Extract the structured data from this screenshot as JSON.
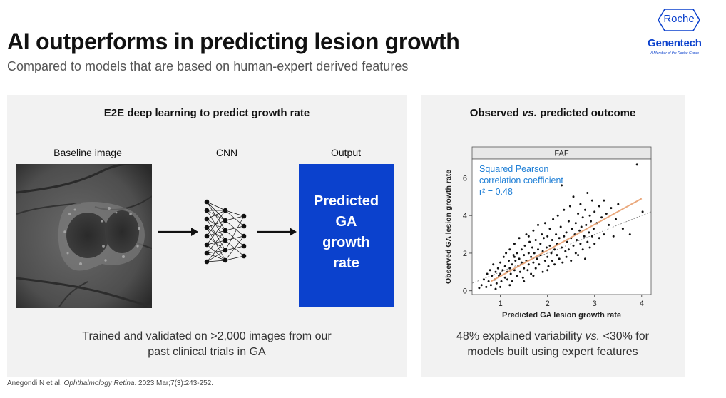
{
  "slide": {
    "title": "AI outperforms in predicting lesion growth",
    "subtitle": "Compared to models that are based on human-expert derived features"
  },
  "logo": {
    "brand": "Roche",
    "company": "Genentech",
    "tagline": "A Member of the Roche Group"
  },
  "left_panel": {
    "heading": "E2E deep learning to predict growth rate",
    "col_baseline": "Baseline image",
    "col_cnn": "CNN",
    "col_output": "Output",
    "output_lines": [
      "Predicted",
      "GA",
      "growth",
      "rate"
    ],
    "footnote_line1": "Trained and validated on >2,000 images from our",
    "footnote_line2": "past clinical trials in GA"
  },
  "right_panel": {
    "heading_pre": "Observed ",
    "heading_vs": "vs.",
    "heading_post": " predicted outcome",
    "footnote_line1_pre": "48% explained variability ",
    "footnote_line1_vs": "vs.",
    "footnote_line1_post": " <30% for",
    "footnote_line2": "models built using expert features"
  },
  "reference": {
    "authors": "Anegondi N et al. ",
    "journal": "Ophthalmology Retina",
    "details": ". 2023 Mar;7(3):243-252."
  },
  "colors": {
    "brand_blue": "#0b41cd",
    "panel_bg": "#f2f2f2",
    "fit_line": "#e8a070",
    "annotation": "#1f7fd6"
  },
  "chart_data": {
    "type": "scatter",
    "title": "FAF",
    "xlabel": "Predicted GA lesion growth rate",
    "ylabel": "Observed GA lesion growth rate",
    "xlim": [
      0.4,
      4.2
    ],
    "ylim": [
      -0.2,
      7.0
    ],
    "xticks": [
      1,
      2,
      3,
      4
    ],
    "yticks": [
      0,
      2,
      4,
      6
    ],
    "annotation_lines": [
      "Squared Pearson",
      "correlation coefficient",
      "r² = 0.48"
    ],
    "fit_line": {
      "x": [
        0.8,
        4.0
      ],
      "y": [
        0.5,
        4.9
      ]
    },
    "identity_line": {
      "x": [
        0.4,
        4.2
      ],
      "y": [
        0.4,
        4.2
      ]
    },
    "points": [
      [
        0.55,
        0.15
      ],
      [
        0.6,
        0.3
      ],
      [
        0.65,
        0.6
      ],
      [
        0.7,
        0.2
      ],
      [
        0.72,
        0.9
      ],
      [
        0.75,
        0.5
      ],
      [
        0.78,
        1.1
      ],
      [
        0.8,
        0.3
      ],
      [
        0.82,
        0.8
      ],
      [
        0.85,
        1.4
      ],
      [
        0.88,
        0.6
      ],
      [
        0.9,
        1.0
      ],
      [
        0.92,
        0.4
      ],
      [
        0.95,
        1.2
      ],
      [
        0.97,
        0.8
      ],
      [
        1.0,
        1.5
      ],
      [
        1.0,
        0.9
      ],
      [
        1.02,
        0.5
      ],
      [
        1.05,
        1.1
      ],
      [
        1.07,
        1.8
      ],
      [
        1.1,
        0.7
      ],
      [
        1.1,
        1.3
      ],
      [
        1.12,
        2.0
      ],
      [
        1.15,
        1.0
      ],
      [
        1.15,
        0.6
      ],
      [
        1.18,
        1.6
      ],
      [
        1.2,
        1.2
      ],
      [
        1.2,
        2.2
      ],
      [
        1.22,
        0.9
      ],
      [
        1.25,
        1.4
      ],
      [
        1.25,
        0.5
      ],
      [
        1.28,
        1.9
      ],
      [
        1.3,
        1.1
      ],
      [
        1.3,
        2.5
      ],
      [
        1.32,
        1.6
      ],
      [
        1.35,
        0.8
      ],
      [
        1.35,
        2.0
      ],
      [
        1.38,
        1.3
      ],
      [
        1.4,
        1.7
      ],
      [
        1.4,
        2.8
      ],
      [
        1.42,
        1.0
      ],
      [
        1.45,
        1.5
      ],
      [
        1.45,
        2.2
      ],
      [
        1.48,
        0.7
      ],
      [
        1.5,
        1.9
      ],
      [
        1.5,
        1.2
      ],
      [
        1.52,
        2.4
      ],
      [
        1.55,
        1.6
      ],
      [
        1.55,
        3.0
      ],
      [
        1.58,
        1.1
      ],
      [
        1.6,
        2.0
      ],
      [
        1.6,
        1.4
      ],
      [
        1.62,
        2.6
      ],
      [
        1.65,
        1.8
      ],
      [
        1.65,
        0.9
      ],
      [
        1.68,
        2.3
      ],
      [
        1.7,
        1.5
      ],
      [
        1.7,
        3.2
      ],
      [
        1.72,
        2.0
      ],
      [
        1.75,
        1.2
      ],
      [
        1.75,
        2.7
      ],
      [
        1.78,
        1.7
      ],
      [
        1.8,
        2.2
      ],
      [
        1.8,
        3.5
      ],
      [
        1.82,
        1.4
      ],
      [
        1.85,
        2.5
      ],
      [
        1.85,
        1.9
      ],
      [
        1.88,
        3.0
      ],
      [
        1.9,
        2.1
      ],
      [
        1.9,
        1.0
      ],
      [
        1.92,
        2.8
      ],
      [
        1.95,
        1.6
      ],
      [
        1.95,
        3.6
      ],
      [
        1.98,
        2.3
      ],
      [
        2.0,
        1.8
      ],
      [
        2.0,
        2.9
      ],
      [
        2.02,
        1.3
      ],
      [
        2.05,
        2.4
      ],
      [
        2.05,
        3.3
      ],
      [
        2.08,
        2.0
      ],
      [
        2.1,
        1.6
      ],
      [
        2.1,
        2.7
      ],
      [
        2.12,
        3.8
      ],
      [
        2.15,
        2.2
      ],
      [
        2.15,
        1.4
      ],
      [
        2.18,
        3.0
      ],
      [
        2.2,
        2.5
      ],
      [
        2.2,
        1.9
      ],
      [
        2.22,
        4.0
      ],
      [
        2.25,
        2.8
      ],
      [
        2.25,
        1.7
      ],
      [
        2.28,
        3.4
      ],
      [
        2.3,
        2.3
      ],
      [
        2.3,
        5.6
      ],
      [
        2.32,
        1.5
      ],
      [
        2.35,
        2.9
      ],
      [
        2.35,
        4.3
      ],
      [
        2.38,
        2.1
      ],
      [
        2.4,
        3.1
      ],
      [
        2.4,
        1.8
      ],
      [
        2.42,
        2.6
      ],
      [
        2.45,
        3.7
      ],
      [
        2.45,
        2.2
      ],
      [
        2.48,
        4.5
      ],
      [
        2.5,
        2.8
      ],
      [
        2.5,
        1.6
      ],
      [
        2.52,
        3.3
      ],
      [
        2.55,
        2.4
      ],
      [
        2.55,
        5.0
      ],
      [
        2.58,
        3.0
      ],
      [
        2.6,
        2.0
      ],
      [
        2.6,
        3.6
      ],
      [
        2.62,
        2.7
      ],
      [
        2.65,
        4.1
      ],
      [
        2.65,
        1.9
      ],
      [
        2.68,
        3.2
      ],
      [
        2.7,
        2.5
      ],
      [
        2.7,
        4.6
      ],
      [
        2.72,
        3.4
      ],
      [
        2.75,
        2.2
      ],
      [
        2.75,
        3.9
      ],
      [
        2.78,
        2.9
      ],
      [
        2.8,
        4.3
      ],
      [
        2.8,
        1.7
      ],
      [
        2.82,
        3.5
      ],
      [
        2.85,
        2.6
      ],
      [
        2.85,
        5.2
      ],
      [
        2.88,
        3.1
      ],
      [
        2.9,
        4.0
      ],
      [
        2.9,
        2.3
      ],
      [
        2.92,
        3.7
      ],
      [
        2.95,
        2.9
      ],
      [
        2.95,
        4.8
      ],
      [
        2.98,
        3.3
      ],
      [
        3.0,
        2.5
      ],
      [
        3.0,
        4.2
      ],
      [
        3.05,
        3.6
      ],
      [
        3.1,
        4.5
      ],
      [
        3.1,
        2.8
      ],
      [
        3.15,
        3.9
      ],
      [
        3.2,
        4.8
      ],
      [
        3.2,
        3.0
      ],
      [
        3.25,
        4.1
      ],
      [
        3.3,
        3.5
      ],
      [
        3.35,
        4.4
      ],
      [
        3.4,
        2.9
      ],
      [
        3.45,
        3.8
      ],
      [
        3.5,
        4.6
      ],
      [
        3.6,
        3.3
      ],
      [
        3.75,
        3.0
      ],
      [
        3.9,
        6.7
      ],
      [
        4.02,
        4.2
      ],
      [
        1.0,
        0.2
      ],
      [
        1.2,
        0.3
      ],
      [
        1.5,
        0.5
      ],
      [
        0.9,
        0.1
      ],
      [
        1.6,
        2.9
      ],
      [
        1.3,
        1.8
      ],
      [
        1.7,
        0.8
      ],
      [
        2.0,
        1.1
      ]
    ]
  }
}
